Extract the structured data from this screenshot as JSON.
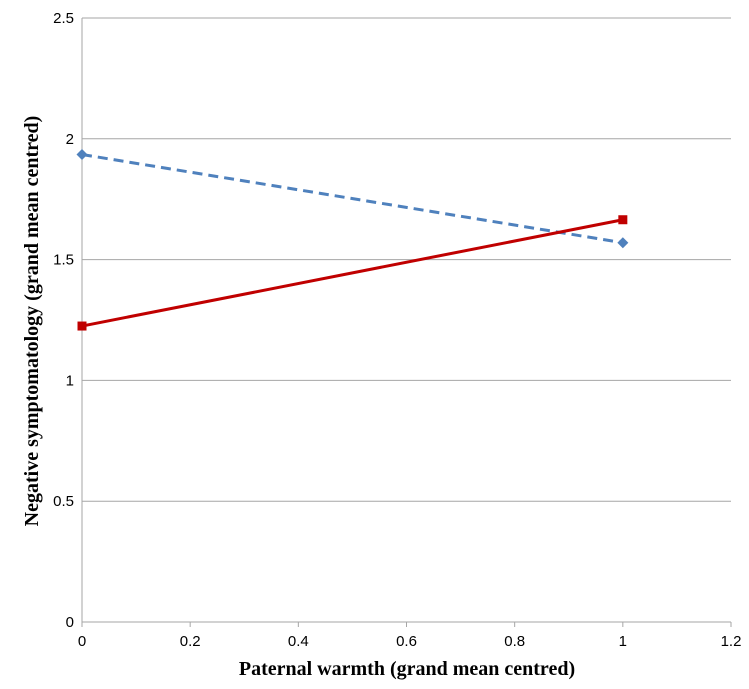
{
  "chart_data": {
    "type": "line",
    "xlabel": "Paternal warmth (grand mean centred)",
    "ylabel": "Negative symptomatology (grand mean centred)",
    "xlim": [
      0,
      1.2
    ],
    "ylim": [
      0,
      2.5
    ],
    "x_ticks": [
      "0",
      "0.2",
      "0.4",
      "0.6",
      "0.8",
      "1",
      "1.2"
    ],
    "y_ticks": [
      "0",
      "0.5",
      "1",
      "1.5",
      "2",
      "2.5"
    ],
    "grid": "horizontal",
    "legend": "none",
    "series": [
      {
        "x": [
          0,
          1
        ],
        "values": [
          1.935,
          1.57
        ],
        "color": "#4f81bd",
        "line_style": "dashed",
        "marker": "diamond"
      },
      {
        "x": [
          0,
          1
        ],
        "values": [
          1.225,
          1.665
        ],
        "color": "#c00000",
        "line_style": "solid",
        "marker": "square"
      }
    ]
  }
}
